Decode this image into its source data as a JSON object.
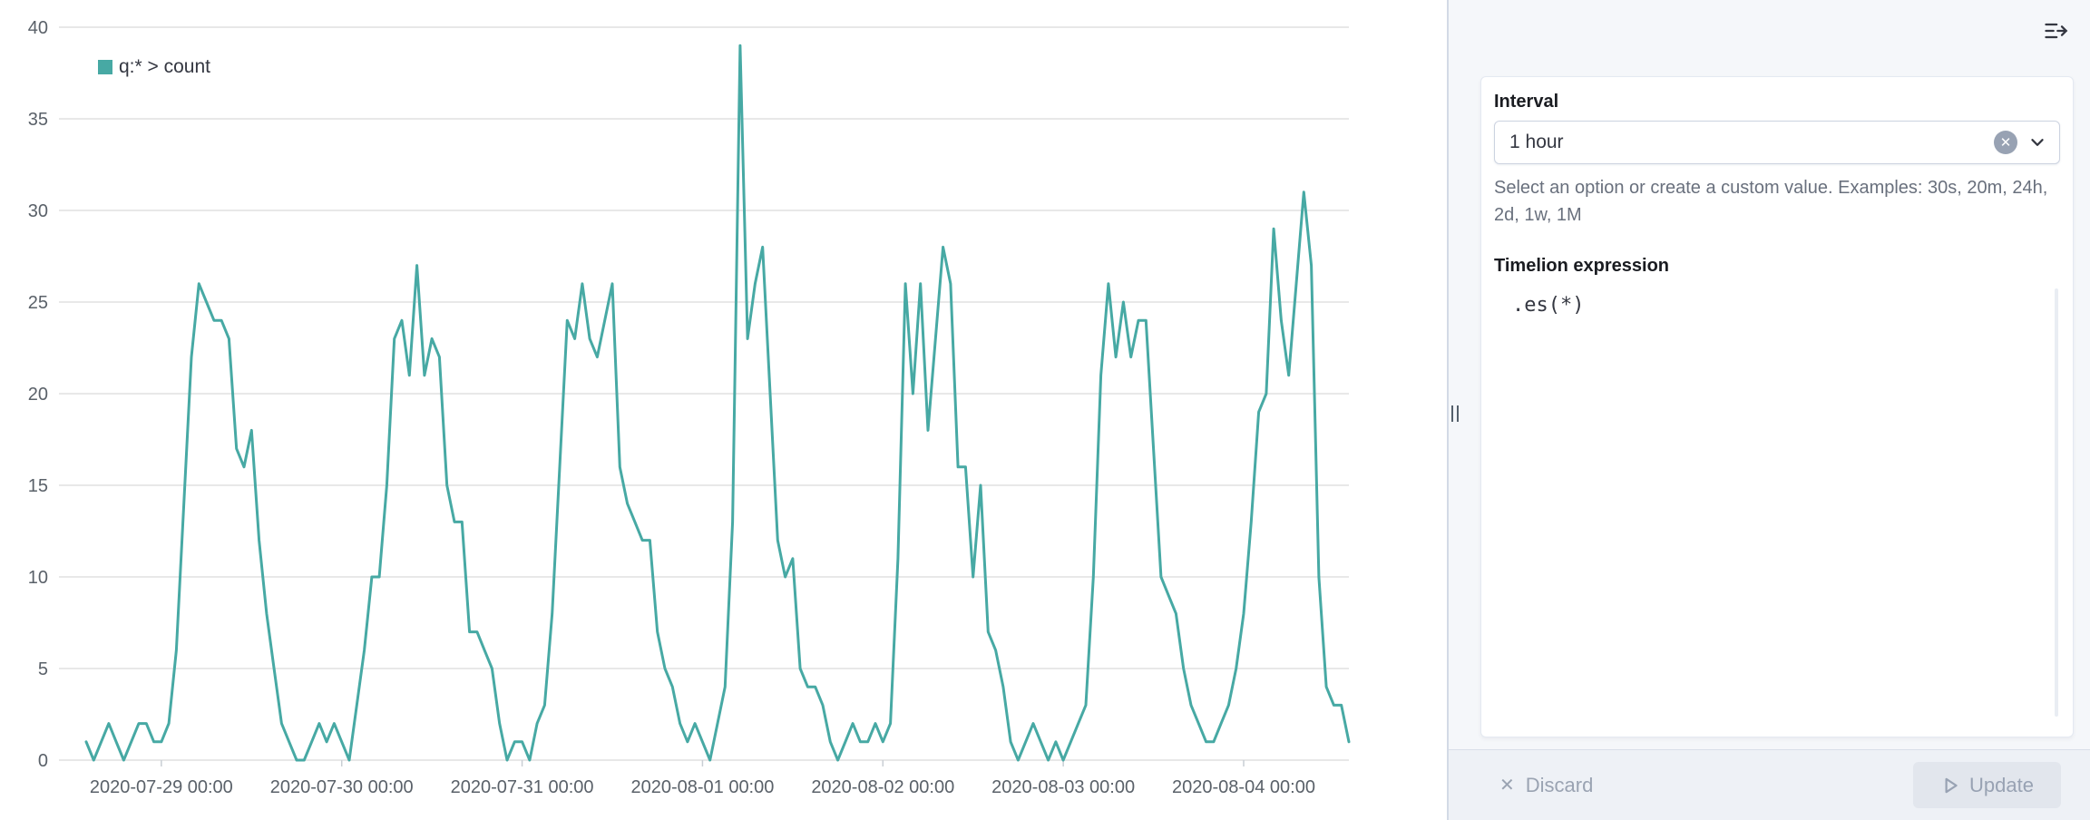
{
  "colors": {
    "series": "#47a9a4",
    "grid": "#e0e0e0",
    "axis_text": "#5a6169",
    "tick": "#c9ced4"
  },
  "chart_data": {
    "type": "line",
    "title": "",
    "legend_position": "top-left",
    "grid": true,
    "ylim": [
      0,
      40
    ],
    "y_ticks": [
      0,
      5,
      10,
      15,
      20,
      25,
      30,
      35,
      40
    ],
    "x_start": "2020-07-28 14:00",
    "x_step_hours": 1,
    "x_ticks": [
      {
        "index": 10,
        "label": "2020-07-29 00:00"
      },
      {
        "index": 34,
        "label": "2020-07-30 00:00"
      },
      {
        "index": 58,
        "label": "2020-07-31 00:00"
      },
      {
        "index": 82,
        "label": "2020-08-01 00:00"
      },
      {
        "index": 106,
        "label": "2020-08-02 00:00"
      },
      {
        "index": 130,
        "label": "2020-08-03 00:00"
      },
      {
        "index": 154,
        "label": "2020-08-04 00:00"
      }
    ],
    "series": [
      {
        "name": "q:* > count",
        "values": [
          1,
          0,
          1,
          2,
          1,
          0,
          1,
          2,
          2,
          1,
          1,
          2,
          6,
          14,
          22,
          26,
          25,
          24,
          24,
          23,
          17,
          16,
          18,
          12,
          8,
          5,
          2,
          1,
          0,
          0,
          1,
          2,
          1,
          2,
          1,
          0,
          3,
          6,
          10,
          10,
          15,
          23,
          24,
          21,
          27,
          21,
          23,
          22,
          15,
          13,
          13,
          7,
          7,
          6,
          5,
          2,
          0,
          1,
          1,
          0,
          2,
          3,
          8,
          16,
          24,
          23,
          26,
          23,
          22,
          24,
          26,
          16,
          14,
          13,
          12,
          12,
          7,
          5,
          4,
          2,
          1,
          2,
          1,
          0,
          2,
          4,
          13,
          39,
          23,
          26,
          28,
          20,
          12,
          10,
          11,
          5,
          4,
          4,
          3,
          1,
          0,
          1,
          2,
          1,
          1,
          2,
          1,
          2,
          11,
          26,
          20,
          26,
          18,
          23,
          28,
          26,
          16,
          16,
          10,
          15,
          7,
          6,
          4,
          1,
          0,
          1,
          2,
          1,
          0,
          1,
          0,
          1,
          2,
          3,
          10,
          21,
          26,
          22,
          25,
          22,
          24,
          24,
          17,
          10,
          9,
          8,
          5,
          3,
          2,
          1,
          1,
          2,
          3,
          5,
          8,
          13,
          19,
          20,
          29,
          24,
          21,
          26,
          31,
          27,
          10,
          4,
          3,
          3,
          1
        ]
      }
    ]
  },
  "panel": {
    "interval_label": "Interval",
    "interval_value": "1 hour",
    "interval_help": "Select an option or create a custom value. Examples: 30s, 20m, 24h, 2d, 1w, 1M",
    "expression_label": "Timelion expression",
    "expression_value": ".es(*)"
  },
  "footer": {
    "discard_label": "Discard",
    "update_label": "Update"
  }
}
